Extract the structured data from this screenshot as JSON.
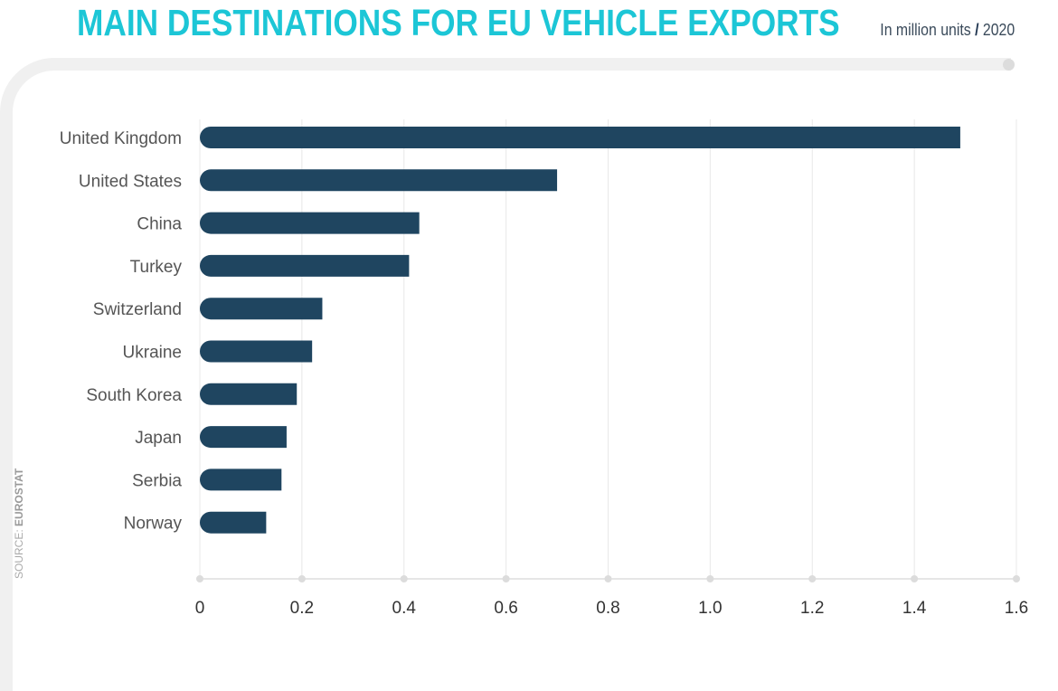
{
  "header": {
    "title": "MAIN DESTINATIONS FOR EU VEHICLE EXPORTS",
    "subtitle_unit": "In million units",
    "subtitle_sep": "/",
    "subtitle_year": "2020"
  },
  "source": {
    "prefix": "SOURCE:",
    "name": "EUROSTAT"
  },
  "chart_data": {
    "type": "bar",
    "orientation": "horizontal",
    "title": "MAIN DESTINATIONS FOR EU VEHICLE EXPORTS",
    "xlabel": "",
    "ylabel": "",
    "unit": "In million units / 2020",
    "categories": [
      "United Kingdom",
      "United States",
      "China",
      "Turkey",
      "Switzerland",
      "Ukraine",
      "South Korea",
      "Japan",
      "Serbia",
      "Norway"
    ],
    "values": [
      1.49,
      0.7,
      0.43,
      0.41,
      0.24,
      0.22,
      0.19,
      0.17,
      0.16,
      0.13
    ],
    "xlim": [
      0,
      1.6
    ],
    "xticks": [
      "0",
      "0.2",
      "0.4",
      "0.6",
      "0.8",
      "1.0",
      "1.2",
      "1.4",
      "1.6"
    ],
    "grid": "vertical",
    "bar_color": "#1f4560",
    "title_color": "#1cc6d6"
  }
}
